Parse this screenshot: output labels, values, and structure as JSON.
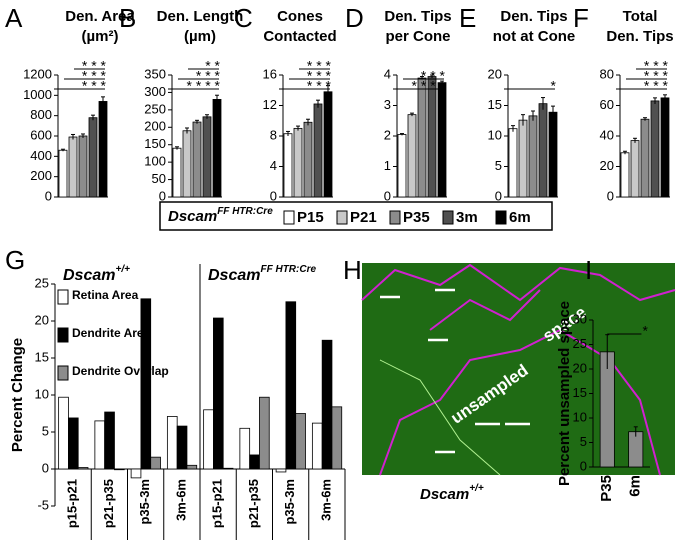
{
  "legend": {
    "name": "Dscam",
    "superscript": "FF HTR:Cre",
    "items": [
      "P15",
      "P21",
      "P35",
      "3m",
      "6m"
    ],
    "colors": [
      "#ffffff",
      "#c8c8c8",
      "#8c8c8c",
      "#505050",
      "#000000"
    ]
  },
  "chart_data": [
    {
      "type": "bar",
      "panel_label": "A",
      "title": [
        "Den. Area",
        "(µm²)"
      ],
      "values": [
        460,
        590,
        600,
        780,
        940
      ],
      "errors": [
        10,
        25,
        20,
        25,
        45
      ],
      "ylim": [
        0,
        1200
      ],
      "yticks": [
        0,
        200,
        400,
        600,
        800,
        1000,
        1200
      ],
      "significance": [
        "* * *",
        "* * *",
        "* * *"
      ]
    },
    {
      "type": "bar",
      "panel_label": "B",
      "title": [
        "Den. Length",
        "(µm)"
      ],
      "values": [
        140,
        190,
        215,
        230,
        280
      ],
      "errors": [
        4,
        8,
        5,
        6,
        12
      ],
      "ylim": [
        0,
        350
      ],
      "yticks": [
        0,
        50,
        100,
        150,
        200,
        250,
        300,
        350
      ],
      "significance": [
        "* * * *",
        "* * *",
        "* *"
      ]
    },
    {
      "type": "bar",
      "panel_label": "C",
      "title": [
        "Cones",
        "Contacted"
      ],
      "values": [
        8.3,
        9.0,
        9.8,
        12.2,
        13.8
      ],
      "errors": [
        0.3,
        0.3,
        0.4,
        0.5,
        0.8
      ],
      "ylim": [
        0,
        16
      ],
      "yticks": [
        0,
        4,
        8,
        12,
        16
      ],
      "significance": [
        "* * *",
        "* * *",
        "* * *"
      ]
    },
    {
      "type": "bar",
      "panel_label": "D",
      "title": [
        "Den. Tips",
        "per Cone"
      ],
      "values": [
        2.05,
        2.7,
        3.9,
        3.95,
        3.75
      ],
      "errors": [
        0.03,
        0.05,
        0.05,
        0.05,
        0.05
      ],
      "ylim": [
        0,
        4
      ],
      "yticks": [
        0,
        1,
        2,
        3,
        4
      ],
      "significance": [
        "* * * *",
        "* * *"
      ]
    },
    {
      "type": "bar",
      "panel_label": "E",
      "title": [
        "Den. Tips",
        "not at Cone"
      ],
      "values": [
        11.2,
        12.6,
        13.3,
        15.3,
        13.9
      ],
      "errors": [
        0.5,
        0.9,
        0.8,
        1.0,
        1.0
      ],
      "ylim": [
        0,
        20
      ],
      "yticks": [
        0,
        5,
        10,
        15,
        20
      ],
      "significance": [
        "*"
      ]
    },
    {
      "type": "bar",
      "panel_label": "F",
      "title": [
        "Total",
        "Den. Tips"
      ],
      "values": [
        29,
        37,
        51,
        63,
        65
      ],
      "errors": [
        1,
        1.5,
        1,
        2,
        2
      ],
      "ylim": [
        0,
        80
      ],
      "yticks": [
        0,
        20,
        40,
        60,
        80
      ],
      "significance": [
        "* * *",
        "* * *",
        "* * *"
      ]
    },
    {
      "type": "grouped_bar",
      "panel_label": "G",
      "ylabel": "Percent Change",
      "groups": [
        {
          "name": "Dscam",
          "superscript": "+/+"
        },
        {
          "name": "Dscam",
          "superscript": "FF HTR:Cre"
        }
      ],
      "categories": [
        "p15-p21",
        "p21-p35",
        "p35-3m",
        "3m-6m",
        "p15-p21",
        "p21-p35",
        "p35-3m",
        "3m-6m"
      ],
      "series": [
        {
          "name": "Retina Area",
          "color": "#ffffff",
          "values": [
            9.7,
            6.5,
            -1.2,
            7.1,
            8.0,
            5.5,
            -0.4,
            6.2
          ]
        },
        {
          "name": "Dendrite Area",
          "color": "#000000",
          "values": [
            6.9,
            7.7,
            23.0,
            5.8,
            20.4,
            1.9,
            22.6,
            17.4
          ]
        },
        {
          "name": "Dendrite Overlap",
          "color": "#8c8c8c",
          "values": [
            0.2,
            -0.1,
            1.6,
            0.5,
            0.1,
            9.7,
            7.5,
            8.4
          ]
        }
      ],
      "ylim": [
        -5,
        25
      ],
      "yticks": [
        -5,
        0,
        5,
        10,
        15,
        20,
        25
      ]
    },
    {
      "type": "bar",
      "panel_label": "I",
      "ylabel": "Percent unsampled space",
      "categories": [
        "P35",
        "6m"
      ],
      "values": [
        23.5,
        7.2
      ],
      "errors": [
        3.5,
        1.0
      ],
      "color": "#8c8c8c",
      "ylim": [
        0,
        30
      ],
      "yticks": [
        0,
        5,
        10,
        15,
        20,
        25,
        30
      ],
      "significance": [
        "*"
      ]
    }
  ],
  "image_panel": {
    "panel_label": "H",
    "texts": [
      "unsampled",
      "space"
    ],
    "caption": {
      "name": "Dscam",
      "superscript": "+/+"
    }
  }
}
